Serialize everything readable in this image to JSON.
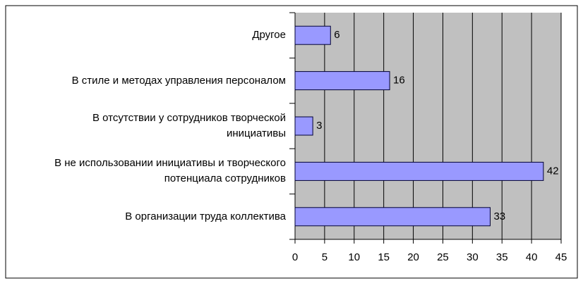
{
  "chart_data": {
    "type": "barh",
    "categories": [
      "Другое",
      "В стиле и методах управления персоналом",
      "В отсутствии у сотрудников творческой\nинициативы",
      "В не использовании инициативы и творческого\nпотенциала сотрудников",
      "В организации труда коллектива"
    ],
    "values": [
      6,
      16,
      3,
      42,
      33
    ],
    "color": "#9999ff",
    "xlim": [
      0,
      45
    ],
    "xticks": [
      0,
      5,
      10,
      15,
      20,
      25,
      30,
      35,
      40,
      45
    ],
    "grid": true
  }
}
